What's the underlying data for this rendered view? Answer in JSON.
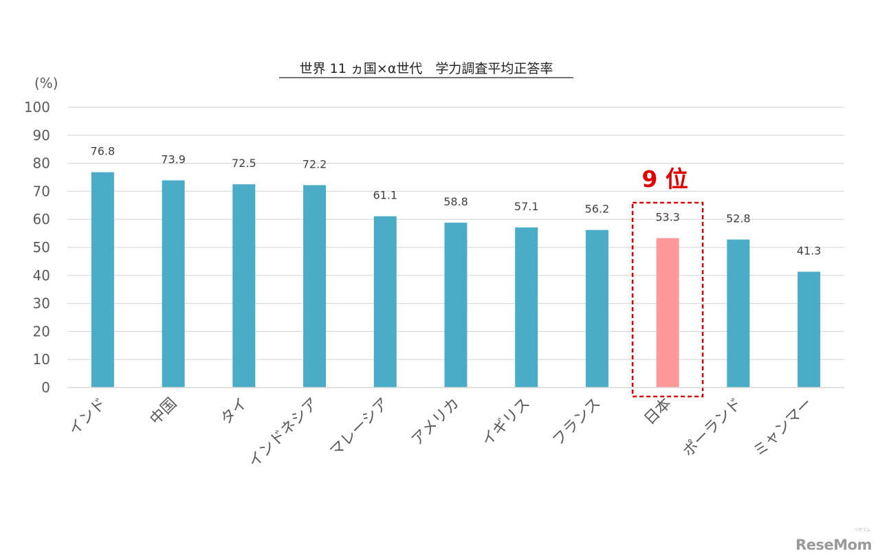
{
  "chart_data": {
    "type": "bar",
    "title": "世界 11 ヵ国×α世代　学力調査平均正答率",
    "ylabel": "(%)",
    "xlabel": "",
    "ylim": [
      0,
      100
    ],
    "yticks": [
      0,
      10,
      20,
      30,
      40,
      50,
      60,
      70,
      80,
      90,
      100
    ],
    "grid": true,
    "categories": [
      "インド",
      "中国",
      "タイ",
      "インドネシア",
      "マレーシア",
      "アメリカ",
      "イギリス",
      "フランス",
      "日本",
      "ポーランド",
      "ミャンマー"
    ],
    "values": [
      76.8,
      73.9,
      72.5,
      72.2,
      61.1,
      58.8,
      57.1,
      56.2,
      53.3,
      52.8,
      41.3
    ],
    "value_labels": [
      "76.8",
      "73.9",
      "72.5",
      "72.2",
      "61.1",
      "58.8",
      "57.1",
      "56.2",
      "53.3",
      "52.8",
      "41.3"
    ],
    "bar_color": "#4aacc6",
    "highlight": {
      "category": "日本",
      "color": "#ff9999",
      "annotation": "9 位",
      "annotation_color": "#e00000"
    },
    "axis_color": "#595959",
    "grid_color": "#d9d9d9"
  },
  "watermark": {
    "logo": "ReseMom",
    "sub": "リセマム"
  }
}
